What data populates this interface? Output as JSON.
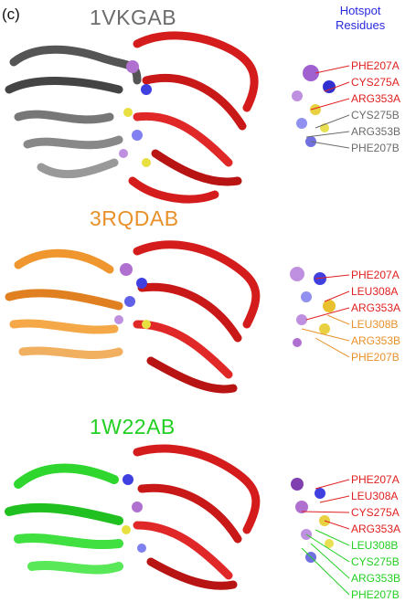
{
  "panel_label": "(c)",
  "legend": {
    "line1": "Hotspot",
    "line2": "Residues",
    "color": "#2a2ae0"
  },
  "panels": [
    {
      "title": "1VKGAB",
      "title_color": "#6b6b6b",
      "chainB_color": "#555555",
      "labels": [
        {
          "text": "PHE207A",
          "color": "#e02020"
        },
        {
          "text": "CYS275A",
          "color": "#e02020"
        },
        {
          "text": "ARG353A",
          "color": "#e02020"
        },
        {
          "text": "CYS275B",
          "color": "#6b6b6b"
        },
        {
          "text": "ARG353B",
          "color": "#6b6b6b"
        },
        {
          "text": "PHE207B",
          "color": "#6b6b6b"
        }
      ]
    },
    {
      "title": "3RQDAB",
      "title_color": "#e8902a",
      "chainB_color": "#f0962e",
      "labels": [
        {
          "text": "PHE207A",
          "color": "#e02020"
        },
        {
          "text": "LEU308A",
          "color": "#e02020"
        },
        {
          "text": "ARG353A",
          "color": "#e02020"
        },
        {
          "text": "LEU308B",
          "color": "#e8902a"
        },
        {
          "text": "ARG353B",
          "color": "#e8902a"
        },
        {
          "text": "PHE207B",
          "color": "#e8902a"
        }
      ]
    },
    {
      "title": "1W22AB",
      "title_color": "#22d022",
      "chainB_color": "#2ed62e",
      "labels": [
        {
          "text": "PHE207A",
          "color": "#e02020"
        },
        {
          "text": "LEU308A",
          "color": "#e02020"
        },
        {
          "text": "CYS275A",
          "color": "#e02020"
        },
        {
          "text": "ARG353A",
          "color": "#e02020"
        },
        {
          "text": "LEU308B",
          "color": "#22d022"
        },
        {
          "text": "CYS275B",
          "color": "#22d022"
        },
        {
          "text": "ARG353B",
          "color": "#22d022"
        },
        {
          "text": "PHE207B",
          "color": "#22d022"
        }
      ]
    }
  ]
}
